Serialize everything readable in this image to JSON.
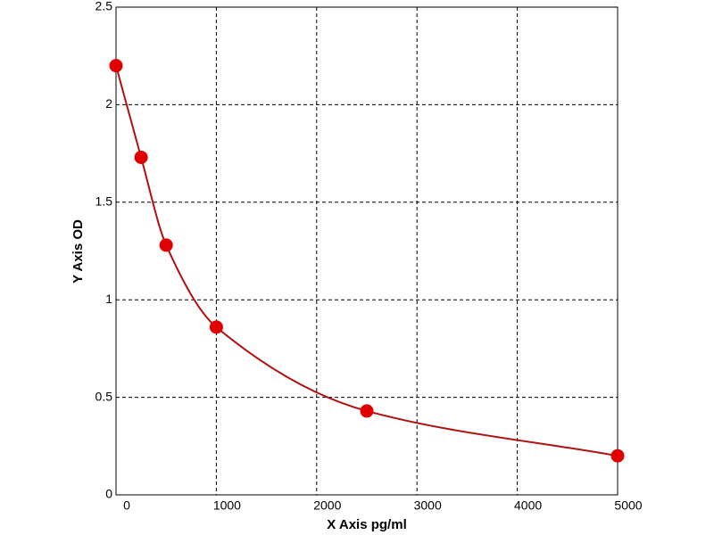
{
  "chart_data": {
    "type": "scatter",
    "x_label": "X Axis pg/ml",
    "y_label": "Y Axis OD",
    "series": [
      {
        "x": [
          0,
          250,
          500,
          1000,
          2500,
          5000
        ],
        "values": [
          2.2,
          1.73,
          1.28,
          0.86,
          0.43,
          0.2
        ],
        "color": "#e00000",
        "line_color": "#b01010"
      }
    ],
    "fit_line": true,
    "xlim": [
      0,
      5000
    ],
    "xticks": [
      0,
      1000,
      2000,
      3000,
      4000,
      5000
    ],
    "ylim": [
      0,
      2.5
    ],
    "yticks": [
      0,
      0.5,
      1,
      1.5,
      2,
      2.5
    ],
    "grid": true
  }
}
